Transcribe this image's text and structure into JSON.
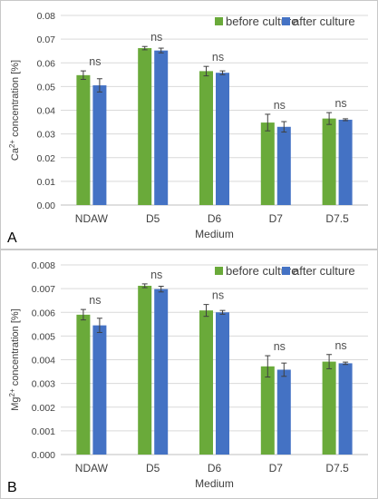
{
  "colors": {
    "before": "#6aaa3a",
    "after": "#4472c4",
    "grid": "#d9d9d9",
    "axis": "#bfbfbf",
    "error_bar": "#404040"
  },
  "chart_data": [
    {
      "type": "bar",
      "panel_label": "A",
      "categories": [
        "NDAW",
        "D5",
        "D6",
        "D7",
        "D7.5"
      ],
      "series": [
        {
          "name": "before culture",
          "values": [
            0.0548,
            0.0662,
            0.0565,
            0.0348,
            0.0365
          ],
          "errors": [
            0.0018,
            0.0007,
            0.002,
            0.0035,
            0.0025
          ]
        },
        {
          "name": "after culture",
          "values": [
            0.0505,
            0.0652,
            0.0558,
            0.033,
            0.036
          ],
          "errors": [
            0.0028,
            0.001,
            0.0008,
            0.0022,
            0.0004
          ]
        }
      ],
      "annotations": [
        "ns",
        "ns",
        "ns",
        "ns",
        "ns"
      ],
      "xlabel": "Medium",
      "ylabel_main": "Ca",
      "ylabel_sup": "2+",
      "ylabel_rest": " concentration [%]",
      "ylim": [
        0,
        0.08
      ],
      "yticks": [
        "0.00",
        "0.01",
        "0.02",
        "0.03",
        "0.04",
        "0.05",
        "0.06",
        "0.07",
        "0.08"
      ],
      "grid": true,
      "legend": "top-right"
    },
    {
      "type": "bar",
      "panel_label": "B",
      "categories": [
        "NDAW",
        "D5",
        "D6",
        "D7",
        "D7.5"
      ],
      "series": [
        {
          "name": "before culture",
          "values": [
            0.0059,
            0.00712,
            0.00608,
            0.00372,
            0.00392
          ],
          "errors": [
            0.00022,
            8e-05,
            0.00025,
            0.00045,
            0.0003
          ]
        },
        {
          "name": "after culture",
          "values": [
            0.00545,
            0.00698,
            0.006,
            0.00358,
            0.00385
          ],
          "errors": [
            0.0003,
            0.00012,
            8e-05,
            0.00028,
            5e-05
          ]
        }
      ],
      "annotations": [
        "ns",
        "ns",
        "ns",
        "ns",
        "ns"
      ],
      "xlabel": "Medium",
      "ylabel_main": "Mg",
      "ylabel_sup": "2+",
      "ylabel_rest": " concentration [%]",
      "ylim": [
        0,
        0.008
      ],
      "yticks": [
        "0.000",
        "0.001",
        "0.002",
        "0.003",
        "0.004",
        "0.005",
        "0.006",
        "0.007",
        "0.008"
      ],
      "grid": true,
      "legend": "top-right"
    }
  ]
}
